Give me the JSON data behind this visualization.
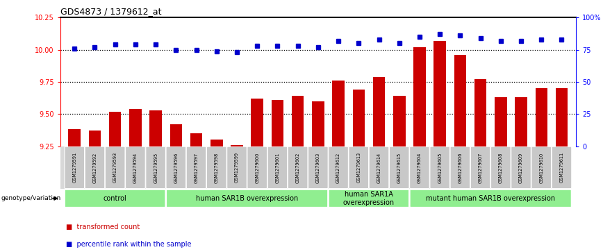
{
  "title": "GDS4873 / 1379612_at",
  "samples": [
    "GSM1279591",
    "GSM1279592",
    "GSM1279593",
    "GSM1279594",
    "GSM1279595",
    "GSM1279596",
    "GSM1279597",
    "GSM1279598",
    "GSM1279599",
    "GSM1279600",
    "GSM1279601",
    "GSM1279602",
    "GSM1279603",
    "GSM1279612",
    "GSM1279613",
    "GSM1279614",
    "GSM1279615",
    "GSM1279604",
    "GSM1279605",
    "GSM1279606",
    "GSM1279607",
    "GSM1279608",
    "GSM1279609",
    "GSM1279610",
    "GSM1279611"
  ],
  "transformed_count": [
    9.38,
    9.37,
    9.52,
    9.54,
    9.53,
    9.42,
    9.35,
    9.3,
    9.26,
    9.62,
    9.61,
    9.64,
    9.6,
    9.76,
    9.69,
    9.79,
    9.64,
    10.02,
    10.07,
    9.96,
    9.77,
    9.63,
    9.63,
    9.7,
    9.7
  ],
  "percentile_rank": [
    76,
    77,
    79,
    79,
    79,
    75,
    75,
    74,
    73,
    78,
    78,
    78,
    77,
    82,
    80,
    83,
    80,
    85,
    87,
    86,
    84,
    82,
    82,
    83,
    83
  ],
  "groups": [
    {
      "label": "control",
      "start": 0,
      "end": 5
    },
    {
      "label": "human SAR1B overexpression",
      "start": 5,
      "end": 13
    },
    {
      "label": "human SAR1A\noverexpression",
      "start": 13,
      "end": 17
    },
    {
      "label": "mutant human SAR1B overexpression",
      "start": 17,
      "end": 25
    }
  ],
  "ylim_left": [
    9.25,
    10.25
  ],
  "ylim_right": [
    0,
    100
  ],
  "yticks_left": [
    9.25,
    9.5,
    9.75,
    10.0,
    10.25
  ],
  "yticks_right": [
    0,
    25,
    50,
    75,
    100
  ],
  "ytick_right_labels": [
    "0",
    "25",
    "50",
    "75",
    "100%"
  ],
  "bar_color": "#cc0000",
  "dot_color": "#0000cc",
  "group_color": "#90ee90",
  "sample_box_color": "#c8c8c8",
  "sample_box_edge": "#b0b0b0",
  "title_fontsize": 9,
  "tick_fontsize": 7,
  "sample_fontsize": 4.8,
  "group_fontsize": 7,
  "legend_fontsize": 7
}
